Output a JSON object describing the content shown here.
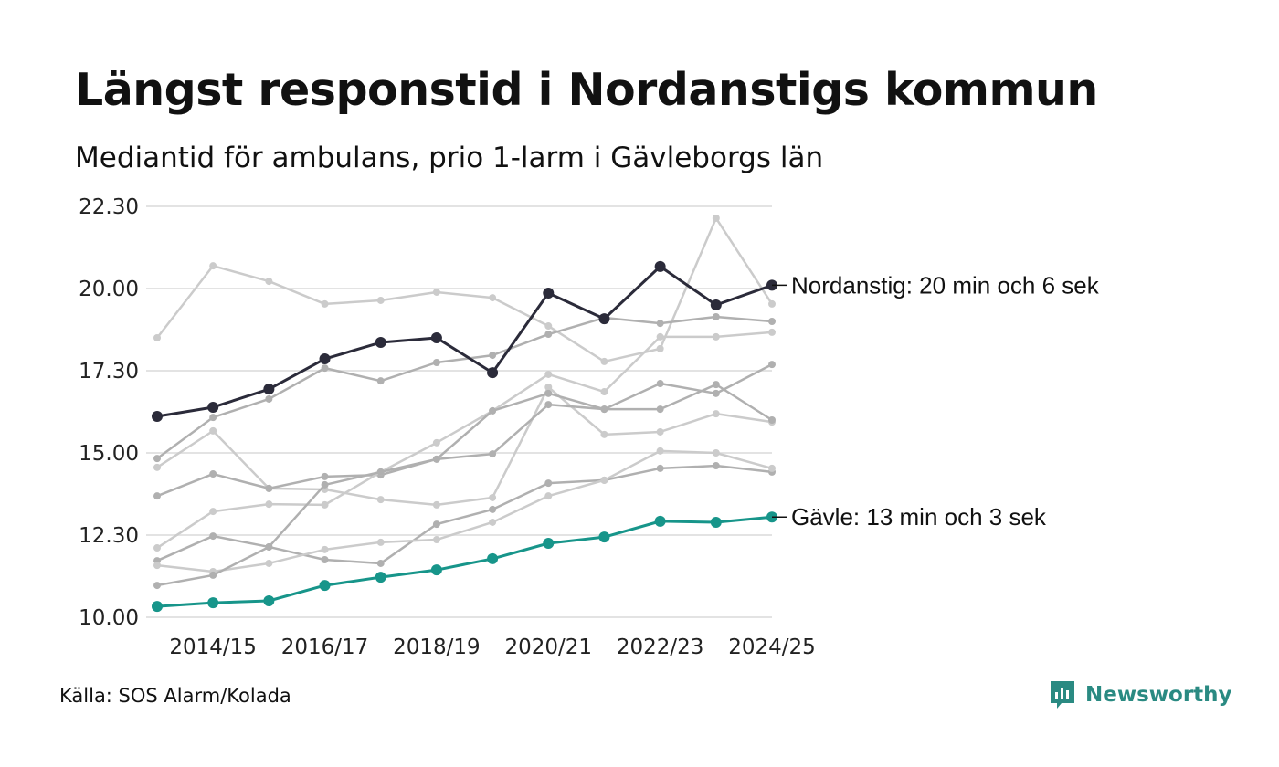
{
  "header": {
    "title": "Längst responstid i Nordanstigs kommun",
    "subtitle": "Mediantid för ambulans, prio 1-larm i Gävleborgs län"
  },
  "footer": {
    "source": "Källa: SOS Alarm/Kolada",
    "logo_text": "Newsworthy"
  },
  "colors": {
    "highlight": "#2b2b3a",
    "gavle": "#17958a",
    "grey_dark": "#b0b0b0",
    "grey_light": "#cbcbcb",
    "grid": "#e3e3e3"
  },
  "chart_data": {
    "type": "line",
    "title": "Längst responstid i Nordanstigs kommun",
    "subtitle": "Mediantid för ambulans, prio 1-larm i Gävleborgs län",
    "xlabel": "",
    "ylabel": "",
    "x": [
      "2013/14",
      "2014/15",
      "2015/16",
      "2016/17",
      "2017/18",
      "2018/19",
      "2019/20",
      "2020/21",
      "2021/22",
      "2022/23",
      "2023/24",
      "2024/25"
    ],
    "x_tick_labels": [
      "2014/15",
      "2016/17",
      "2018/19",
      "2020/21",
      "2022/23",
      "2024/25"
    ],
    "ylim": [
      10,
      22.5
    ],
    "y_ticks": [
      {
        "value": 10,
        "label": "10.00"
      },
      {
        "value": 12.5,
        "label": "12.30"
      },
      {
        "value": 15,
        "label": "15.00"
      },
      {
        "value": 17.5,
        "label": "17.30"
      },
      {
        "value": 20,
        "label": "20.00"
      },
      {
        "value": 22.5,
        "label": "22.30"
      }
    ],
    "grid": true,
    "series": [
      {
        "tone": "light",
        "values": [
          18.5,
          20.69,
          20.22,
          19.53,
          19.64,
          19.89,
          19.72,
          18.86,
          17.78,
          18.17,
          22.14,
          19.53
        ]
      },
      {
        "tone": "dark",
        "values": [
          14.83,
          16.08,
          16.64,
          17.58,
          17.19,
          17.75,
          17.97,
          18.61,
          19.11,
          18.94,
          19.14,
          19.0
        ]
      },
      {
        "tone": "light",
        "values": [
          14.56,
          15.67,
          13.92,
          13.89,
          13.58,
          13.42,
          13.64,
          17.0,
          15.56,
          15.64,
          16.19,
          15.94
        ]
      },
      {
        "tone": "dark",
        "values": [
          13.69,
          14.36,
          13.92,
          14.28,
          14.33,
          14.81,
          14.97,
          16.47,
          16.33,
          16.33,
          17.08,
          16.0
        ]
      },
      {
        "tone": "light",
        "values": [
          12.11,
          13.22,
          13.44,
          13.42,
          14.42,
          15.31,
          16.28,
          17.39,
          16.86,
          18.53,
          18.53,
          18.67
        ]
      },
      {
        "tone": "dark",
        "values": [
          11.72,
          12.47,
          12.14,
          11.75,
          11.64,
          12.83,
          13.28,
          14.08,
          14.17,
          14.53,
          14.61,
          14.42
        ]
      },
      {
        "tone": "light",
        "values": [
          11.58,
          11.39,
          11.64,
          12.06,
          12.28,
          12.36,
          12.89,
          13.69,
          14.17,
          15.06,
          15.0,
          14.53
        ]
      },
      {
        "tone": "dark",
        "values": [
          10.97,
          11.28,
          12.14,
          14.03,
          14.42,
          14.81,
          16.28,
          16.81,
          16.33,
          17.11,
          16.81,
          17.69
        ]
      },
      {
        "name": "Gävle",
        "tone": "gavle",
        "label": "Gävle: 13 min och 3 sek",
        "values": [
          10.33,
          10.44,
          10.5,
          10.97,
          11.22,
          11.44,
          11.78,
          12.25,
          12.44,
          12.92,
          12.89,
          13.05
        ]
      },
      {
        "name": "Nordanstig",
        "tone": "highlight",
        "label": "Nordanstig: 20 min och 6 sek",
        "values": [
          16.11,
          16.39,
          16.94,
          17.86,
          18.36,
          18.5,
          17.44,
          19.86,
          19.08,
          20.67,
          19.5,
          20.1
        ]
      }
    ]
  }
}
